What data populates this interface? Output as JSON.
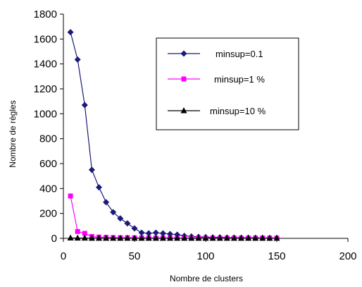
{
  "chart_data": {
    "type": "line",
    "title": "",
    "xlabel": "Nombre de clusters",
    "ylabel": "Nombre de règles",
    "xlim": [
      0,
      200
    ],
    "ylim": [
      0,
      1800
    ],
    "xticks": [
      0,
      50,
      100,
      150,
      200
    ],
    "yticks": [
      0,
      200,
      400,
      600,
      800,
      1000,
      1200,
      1400,
      1600,
      1800
    ],
    "grid": false,
    "legend_position": "top-right",
    "series": [
      {
        "name": "minsup=0.1",
        "color": "#1a1a7a",
        "marker": "diamond",
        "x": [
          5,
          10,
          15,
          20,
          25,
          30,
          35,
          40,
          45,
          50,
          55,
          60,
          65,
          70,
          75,
          80,
          85,
          90,
          95,
          100,
          105,
          110,
          115,
          120,
          125,
          130,
          135,
          140,
          145,
          150
        ],
        "y": [
          1655,
          1435,
          1070,
          550,
          410,
          290,
          210,
          160,
          120,
          80,
          45,
          40,
          45,
          40,
          35,
          30,
          20,
          15,
          12,
          10,
          8,
          8,
          6,
          6,
          5,
          5,
          4,
          4,
          3,
          3
        ]
      },
      {
        "name": "minsup=1 %",
        "color": "#ff00ff",
        "marker": "square",
        "x": [
          5,
          10,
          15,
          20,
          25,
          30,
          35,
          40,
          45,
          50,
          55,
          60,
          65,
          70,
          75,
          80,
          85,
          90,
          95,
          100,
          105,
          110,
          115,
          120,
          125,
          130,
          135,
          140,
          145,
          150
        ],
        "y": [
          340,
          55,
          40,
          15,
          10,
          8,
          6,
          5,
          5,
          4,
          4,
          3,
          3,
          3,
          3,
          2,
          2,
          2,
          2,
          2,
          2,
          2,
          2,
          2,
          2,
          2,
          2,
          2,
          2,
          2
        ]
      },
      {
        "name": "minsup=10 %",
        "color": "#000000",
        "marker": "triangle",
        "x": [
          5,
          10,
          15,
          20,
          25,
          30,
          35,
          40,
          45,
          50,
          55,
          60,
          65,
          70,
          75,
          80,
          85,
          90,
          95,
          100,
          105,
          110,
          115,
          120,
          125,
          130,
          135,
          140,
          145,
          150
        ],
        "y": [
          3,
          2,
          2,
          1,
          1,
          1,
          1,
          1,
          1,
          1,
          1,
          1,
          1,
          1,
          1,
          1,
          1,
          1,
          1,
          1,
          1,
          1,
          1,
          1,
          1,
          1,
          1,
          1,
          1,
          1
        ]
      }
    ]
  }
}
